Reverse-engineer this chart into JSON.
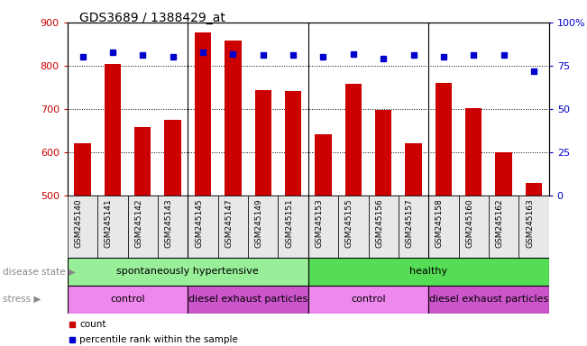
{
  "title": "GDS3689 / 1388429_at",
  "samples": [
    "GSM245140",
    "GSM245141",
    "GSM245142",
    "GSM245143",
    "GSM245145",
    "GSM245147",
    "GSM245149",
    "GSM245151",
    "GSM245153",
    "GSM245155",
    "GSM245156",
    "GSM245157",
    "GSM245158",
    "GSM245160",
    "GSM245162",
    "GSM245163"
  ],
  "counts": [
    620,
    805,
    658,
    675,
    878,
    858,
    743,
    742,
    641,
    759,
    697,
    620,
    760,
    701,
    600,
    530
  ],
  "percentile_ranks": [
    80,
    83,
    81,
    80,
    83,
    82,
    81,
    81,
    80,
    82,
    79,
    81,
    80,
    81,
    81,
    72
  ],
  "ylim_left": [
    500,
    900
  ],
  "ylim_right": [
    0,
    100
  ],
  "yticks_left": [
    500,
    600,
    700,
    800,
    900
  ],
  "yticks_right": [
    0,
    25,
    50,
    75,
    100
  ],
  "bar_color": "#cc0000",
  "dot_color": "#0000cc",
  "disease_state": [
    {
      "label": "spontaneously hypertensive",
      "start": 0,
      "end": 8,
      "color": "#99ee99"
    },
    {
      "label": "healthy",
      "start": 8,
      "end": 16,
      "color": "#55dd55"
    }
  ],
  "stress": [
    {
      "label": "control",
      "start": 0,
      "end": 4,
      "color": "#ee88ee"
    },
    {
      "label": "diesel exhaust particles",
      "start": 4,
      "end": 8,
      "color": "#cc55cc"
    },
    {
      "label": "control",
      "start": 8,
      "end": 12,
      "color": "#ee88ee"
    },
    {
      "label": "diesel exhaust particles",
      "start": 12,
      "end": 16,
      "color": "#cc55cc"
    }
  ],
  "bg_color": "#ffffff",
  "tick_color_left": "#cc0000",
  "tick_color_right": "#0000cc",
  "xtick_bg": "#e8e8e8",
  "group_separators": [
    3.5,
    7.5,
    11.5
  ],
  "legend_items": [
    {
      "label": "count",
      "color": "#cc0000"
    },
    {
      "label": "percentile rank within the sample",
      "color": "#0000cc"
    }
  ]
}
